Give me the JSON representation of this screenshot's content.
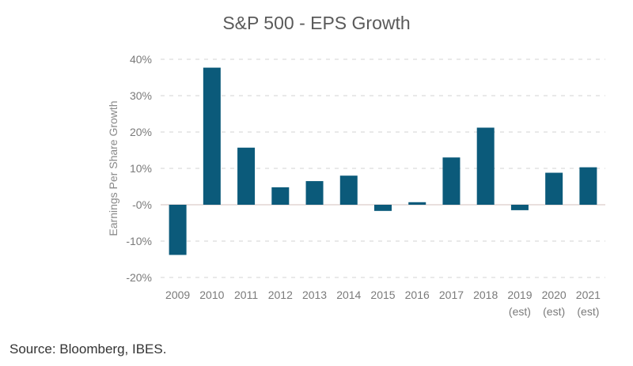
{
  "chart_data": {
    "type": "bar",
    "title": "S&P 500 - EPS Growth",
    "xlabel": "",
    "ylabel": "Earnings Per Share Growth",
    "ylim": [
      -20,
      40
    ],
    "yticks": [
      40,
      30,
      20,
      10,
      0,
      -10,
      -20
    ],
    "ytick_labels": [
      "40%",
      "30%",
      "20%",
      "10%",
      "-0%",
      "-10%",
      "-20%"
    ],
    "grid": true,
    "categories": [
      "2009",
      "2010",
      "2011",
      "2012",
      "2013",
      "2014",
      "2015",
      "2016",
      "2017",
      "2018",
      "2019",
      "2020",
      "2021"
    ],
    "category_sublabels": [
      "",
      "",
      "",
      "",
      "",
      "",
      "",
      "",
      "",
      "",
      "(est)",
      "(est)",
      "(est)"
    ],
    "values": [
      -13.8,
      37.7,
      15.7,
      4.8,
      6.5,
      8.0,
      -1.7,
      0.7,
      13.0,
      21.2,
      -1.5,
      8.8,
      10.3
    ],
    "bar_color": "#0b5a7a",
    "source": "Source: Bloomberg, IBES."
  }
}
